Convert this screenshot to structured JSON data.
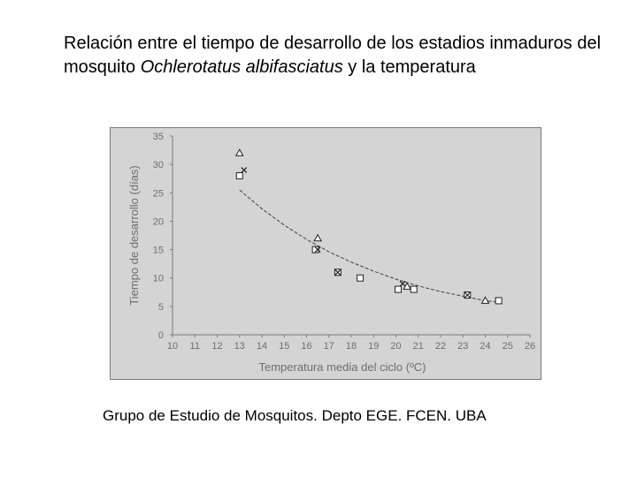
{
  "slide": {
    "title_pre": "Relación entre el tiempo de desarrollo de los estadios inmaduros del mosquito ",
    "title_species": "Ochlerotatus albifasciatus",
    "title_post": " y la temperatura",
    "caption": "Grupo de Estudio de Mosquitos. Depto EGE. FCEN. UBA"
  },
  "colors": {
    "plot_background": "#d4d4d4",
    "plot_border": "#7a7a7a",
    "axis_text": "#6f6f6f",
    "curve": "#404040",
    "marker": "#202020"
  },
  "chart_data": {
    "type": "scatter",
    "xlabel": "Temperatura media del ciclo (ºC)",
    "ylabel": "Tiempo de desarrollo (días)",
    "xlim": [
      10,
      26
    ],
    "ylim": [
      0,
      35
    ],
    "xticks": [
      "10",
      "11",
      "12",
      "13",
      "14",
      "15",
      "16",
      "17",
      "18",
      "19",
      "20",
      "21",
      "22",
      "23",
      "24",
      "25",
      "26"
    ],
    "yticks": [
      "0",
      "5",
      "10",
      "15",
      "20",
      "25",
      "30",
      "35"
    ],
    "grid": false,
    "legend": "none",
    "series": [
      {
        "marker": "triangle",
        "points": [
          [
            13,
            32
          ],
          [
            16.5,
            17
          ],
          [
            20.5,
            8.5
          ],
          [
            24,
            6
          ]
        ]
      },
      {
        "marker": "square",
        "points": [
          [
            13,
            28
          ],
          [
            16.4,
            15
          ],
          [
            17.4,
            11
          ],
          [
            18.4,
            10
          ],
          [
            20.1,
            8
          ],
          [
            20.8,
            8
          ],
          [
            23.2,
            7
          ],
          [
            24.6,
            6
          ]
        ]
      },
      {
        "marker": "x",
        "points": [
          [
            13.2,
            29
          ],
          [
            16.5,
            15
          ],
          [
            17.4,
            11
          ],
          [
            20.3,
            9
          ],
          [
            23.2,
            7
          ]
        ]
      }
    ],
    "fit_curve": {
      "type": "exponential",
      "points": [
        [
          13,
          25.5
        ],
        [
          14,
          22.2
        ],
        [
          15,
          19.3
        ],
        [
          16,
          16.8
        ],
        [
          17,
          14.6
        ],
        [
          18,
          12.8
        ],
        [
          19,
          11.2
        ],
        [
          20,
          9.8
        ],
        [
          21,
          8.6
        ],
        [
          22,
          7.6
        ],
        [
          23,
          6.8
        ],
        [
          24,
          6.0
        ],
        [
          24.8,
          5.6
        ]
      ]
    }
  }
}
